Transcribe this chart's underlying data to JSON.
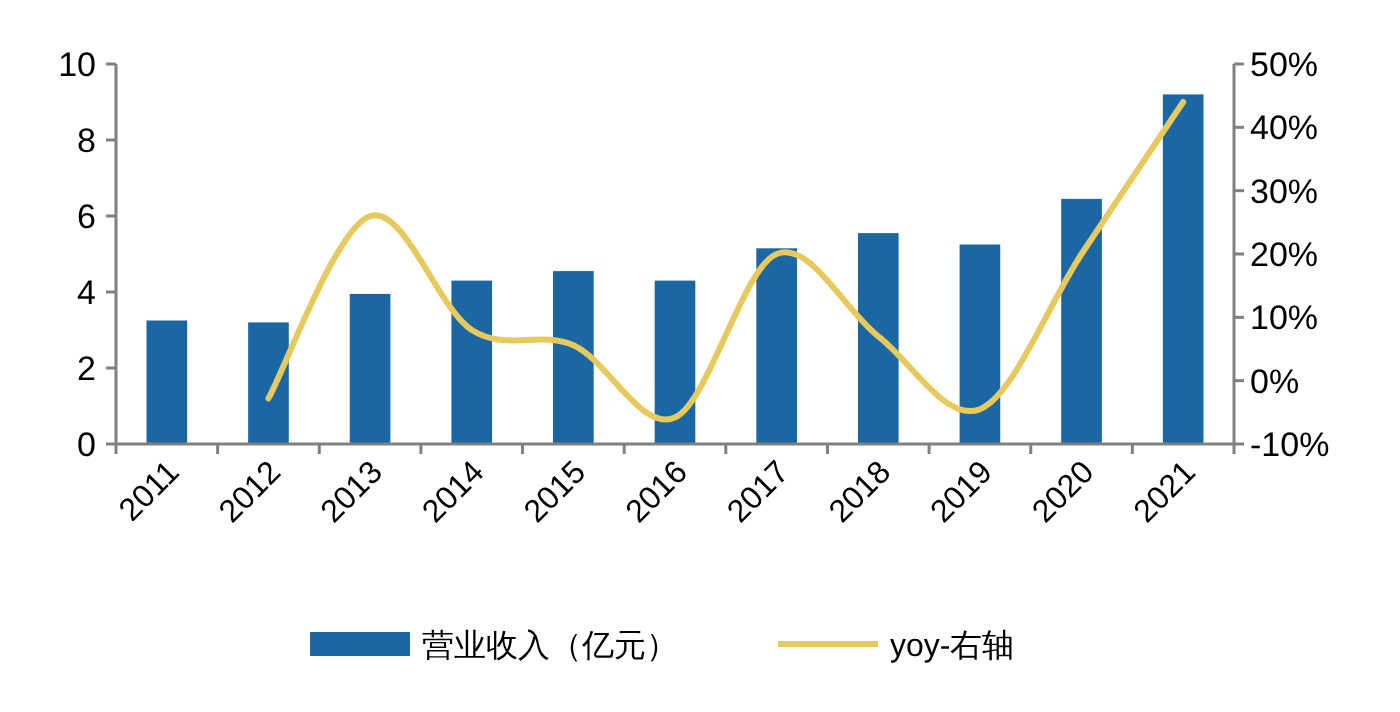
{
  "chart_data": {
    "type": "bar",
    "categories": [
      "2011",
      "2012",
      "2013",
      "2014",
      "2015",
      "2016",
      "2017",
      "2018",
      "2019",
      "2020",
      "2021"
    ],
    "series": [
      {
        "name": "营业收入（亿元）",
        "color": "#1a67a3",
        "values": [
          3.25,
          3.2,
          3.95,
          4.3,
          4.55,
          4.3,
          5.15,
          5.55,
          5.25,
          6.45,
          9.2
        ]
      },
      {
        "name": "yoy-右轴",
        "type": "line",
        "axis": "y2",
        "color": "#e8c95e",
        "values": [
          null,
          -2.8,
          26,
          8,
          5.6,
          -5.8,
          20,
          7,
          -4.5,
          20,
          44
        ]
      }
    ],
    "ylim": [
      0,
      10
    ],
    "yticks": [
      0,
      2,
      4,
      6,
      8,
      10
    ],
    "y2lim": [
      -10,
      50
    ],
    "y2ticks": [
      {
        "value": -10,
        "label": "-10%"
      },
      {
        "value": 0,
        "label": "0%"
      },
      {
        "value": 10,
        "label": "10%"
      },
      {
        "value": 20,
        "label": "20%"
      },
      {
        "value": 30,
        "label": "30%"
      },
      {
        "value": 40,
        "label": "40%"
      },
      {
        "value": 50,
        "label": "50%"
      }
    ],
    "legend": "bottom",
    "grid": false
  }
}
